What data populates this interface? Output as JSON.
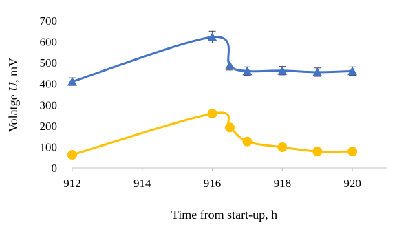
{
  "chart_data": {
    "type": "line",
    "title": "",
    "xlabel": "Time from start-up, h",
    "ylabel_prefix": "Volatge ",
    "ylabel_var": "U",
    "ylabel_suffix": ", mV",
    "xlim": [
      912,
      921
    ],
    "ylim": [
      0,
      700
    ],
    "xticks": [
      912,
      914,
      916,
      918,
      920
    ],
    "yticks": [
      0,
      100,
      200,
      300,
      400,
      500,
      600,
      700
    ],
    "grid": false,
    "legend": "none",
    "series": [
      {
        "color": "#4472C4",
        "marker": "triangle",
        "error_bars": true,
        "points": [
          {
            "x": 912,
            "y": 410,
            "err": 18
          },
          {
            "x": 916,
            "y": 622,
            "err": 28
          },
          {
            "x": 916.5,
            "y": 487,
            "err": 22
          },
          {
            "x": 917,
            "y": 460,
            "err": 20
          },
          {
            "x": 918,
            "y": 462,
            "err": 20
          },
          {
            "x": 919,
            "y": 455,
            "err": 20
          },
          {
            "x": 920,
            "y": 460,
            "err": 20
          }
        ]
      },
      {
        "color": "#FFC000",
        "marker": "circle",
        "error_bars": false,
        "points": [
          {
            "x": 912,
            "y": 62
          },
          {
            "x": 916,
            "y": 258
          },
          {
            "x": 916.5,
            "y": 192
          },
          {
            "x": 917,
            "y": 125
          },
          {
            "x": 918,
            "y": 98
          },
          {
            "x": 919,
            "y": 78
          },
          {
            "x": 920,
            "y": 78
          }
        ]
      }
    ]
  }
}
